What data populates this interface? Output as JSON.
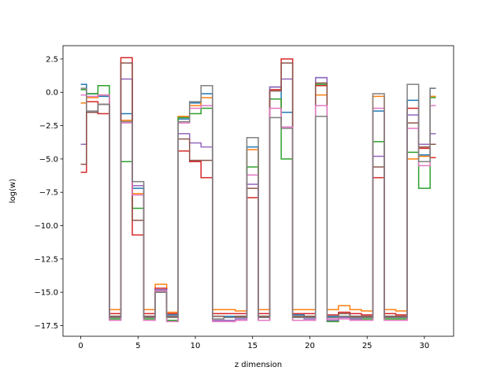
{
  "chart_data": {
    "type": "line",
    "drawstyle": "steps-mid",
    "xlabel": "z dimension",
    "ylabel": "log(w)",
    "xlim": [
      -1.55,
      32.55
    ],
    "ylim": [
      -18.3,
      3.5
    ],
    "xticks": [
      0,
      5,
      10,
      15,
      20,
      25,
      30
    ],
    "yticks": [
      -17.5,
      -15.0,
      -12.5,
      -10.0,
      -7.5,
      -5.0,
      -2.5,
      0.0,
      2.5
    ],
    "ytick_labels": [
      "−17.5",
      "−15.0",
      "−12.5",
      "−10.0",
      "−7.5",
      "−5.0",
      "−2.5",
      "0.0",
      "2.5"
    ],
    "grid": false,
    "legend": "none",
    "x": [
      0,
      1,
      2,
      3,
      4,
      5,
      6,
      7,
      8,
      9,
      10,
      11,
      12,
      13,
      14,
      15,
      16,
      17,
      18,
      19,
      20,
      21,
      22,
      23,
      24,
      25,
      26,
      27,
      28,
      29,
      30,
      31
    ],
    "series": [
      {
        "color": "#1f77b4",
        "values": [
          0.6,
          -0.1,
          -0.3,
          -16.8,
          -1.6,
          -7.2,
          -16.8,
          -14.8,
          -16.7,
          -2.0,
          -0.8,
          -0.1,
          -16.8,
          -16.8,
          -16.8,
          -4.1,
          -16.8,
          0.4,
          -1.5,
          -16.7,
          -16.8,
          1.1,
          -16.8,
          -16.6,
          -16.8,
          -16.8,
          -1.4,
          -16.8,
          -16.8,
          -0.6,
          -4.7,
          0.3
        ]
      },
      {
        "color": "#ff7f0e",
        "values": [
          -0.8,
          -0.4,
          -0.2,
          -16.3,
          -2.1,
          -7.6,
          -16.3,
          -14.4,
          -16.5,
          -1.8,
          -1.0,
          -0.4,
          -16.3,
          -16.3,
          -16.4,
          -4.3,
          -16.3,
          -0.5,
          -2.6,
          -16.3,
          -16.3,
          -0.2,
          -16.3,
          -16.0,
          -16.3,
          -16.4,
          -0.3,
          -16.3,
          -16.4,
          -5.0,
          -4.8,
          -0.3
        ]
      },
      {
        "color": "#2ca02c",
        "values": [
          0.2,
          -0.1,
          0.5,
          -17.0,
          -5.2,
          -8.7,
          -17.0,
          -14.9,
          -17.1,
          -1.9,
          -1.6,
          -1.2,
          -17.1,
          -17.1,
          -17.1,
          -5.6,
          -17.1,
          -0.5,
          -5.0,
          -17.1,
          -17.1,
          0.6,
          -17.2,
          -16.8,
          -17.0,
          -17.0,
          -3.7,
          -17.0,
          -17.0,
          -4.5,
          -7.2,
          -0.4
        ]
      },
      {
        "color": "#d62728",
        "values": [
          -6.0,
          -0.7,
          -1.6,
          -16.6,
          2.6,
          -10.7,
          -16.6,
          -14.7,
          -16.6,
          -4.4,
          -5.2,
          -6.4,
          -16.6,
          -16.6,
          -16.6,
          -7.9,
          -16.6,
          0.2,
          2.5,
          -16.6,
          -16.6,
          0.5,
          -16.7,
          -16.5,
          -16.6,
          -16.7,
          -6.4,
          -16.6,
          -16.7,
          -1.2,
          -4.2,
          -4.9
        ]
      },
      {
        "color": "#9467bd",
        "values": [
          -3.9,
          -1.5,
          -0.9,
          -17.1,
          1.0,
          -7.0,
          -17.1,
          -14.8,
          -16.9,
          -3.1,
          -3.8,
          -4.1,
          -17.1,
          -17.1,
          -17.0,
          -6.9,
          -17.1,
          0.4,
          1.0,
          -16.9,
          -17.0,
          1.1,
          -17.1,
          -16.9,
          -17.0,
          -17.1,
          -4.8,
          -17.1,
          -17.1,
          -1.7,
          -3.9,
          -3.1
        ]
      },
      {
        "color": "#8c564b",
        "values": [
          -5.4,
          -1.5,
          -0.9,
          -16.8,
          2.2,
          -9.6,
          -16.8,
          -15.0,
          -16.8,
          -3.5,
          -5.1,
          -5.1,
          -16.8,
          -16.9,
          -16.8,
          -7.2,
          -16.8,
          0.1,
          2.2,
          -16.8,
          -16.8,
          0.7,
          -16.9,
          -16.6,
          -16.8,
          -16.8,
          -5.6,
          -16.8,
          -16.8,
          -2.3,
          -4.1,
          -3.9
        ]
      },
      {
        "color": "#e377c2",
        "values": [
          -0.2,
          -0.3,
          -0.2,
          -17.1,
          -2.3,
          -7.7,
          -17.1,
          -14.9,
          -17.2,
          -2.3,
          -1.2,
          -1.0,
          -17.2,
          -17.2,
          -17.1,
          -6.2,
          -17.1,
          -1.2,
          -2.6,
          -17.1,
          -17.1,
          -1.0,
          -17.0,
          -17.0,
          -17.1,
          -17.1,
          -1.2,
          -17.1,
          -17.1,
          -2.7,
          -5.5,
          -1.0
        ]
      },
      {
        "color": "#7f7f7f",
        "values": [
          0.3,
          -1.4,
          -0.9,
          -16.9,
          -2.2,
          -6.7,
          -16.9,
          -15.0,
          -16.9,
          -2.2,
          -0.7,
          0.5,
          -17.0,
          -16.9,
          -16.9,
          -3.4,
          -16.9,
          -1.9,
          -2.7,
          -16.9,
          -16.9,
          -1.8,
          -16.9,
          -16.8,
          -16.9,
          -16.9,
          -0.1,
          -16.9,
          -16.9,
          0.6,
          -5.2,
          0.3
        ]
      }
    ]
  }
}
